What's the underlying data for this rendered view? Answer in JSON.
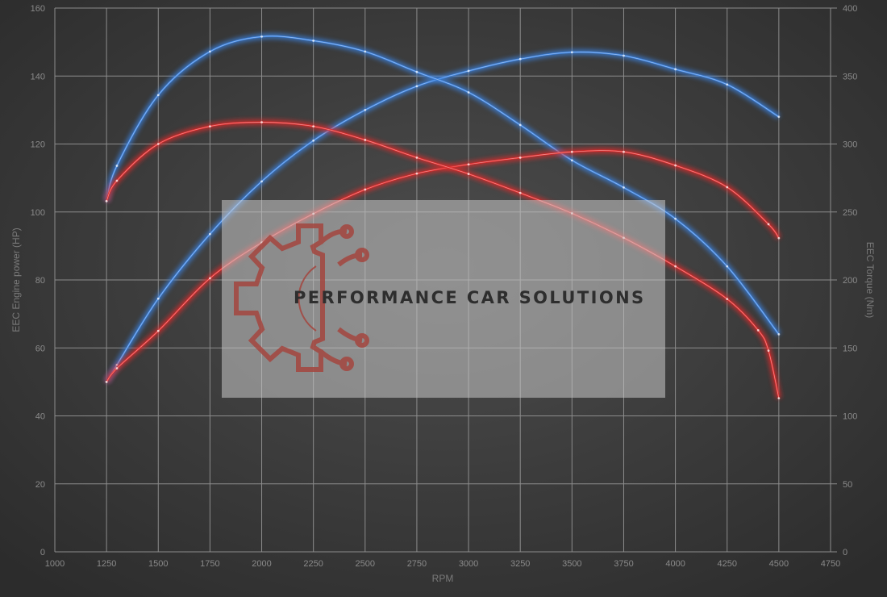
{
  "chart_data": {
    "type": "line",
    "title": "",
    "xlabel": "RPM",
    "ylabel": "EEC Engine power (HP)",
    "y2label": "EEC Torque (Nm)",
    "xlim": [
      1000,
      4750
    ],
    "ylim": [
      0,
      160
    ],
    "y2lim": [
      0,
      400
    ],
    "xticks": [
      1000,
      1250,
      1500,
      1750,
      2000,
      2250,
      2500,
      2750,
      3000,
      3250,
      3500,
      3750,
      4000,
      4250,
      4500,
      4750
    ],
    "yticks": [
      0,
      20,
      40,
      60,
      80,
      100,
      120,
      140,
      160
    ],
    "y2ticks": [
      0,
      50,
      100,
      150,
      200,
      250,
      300,
      350,
      400
    ],
    "grid": true,
    "watermark": "PERFORMANCE CAR SOLUTIONS",
    "series": [
      {
        "axis": "left",
        "color": "#3b82e0",
        "x": [
          1250,
          1300,
          1500,
          1750,
          2000,
          2250,
          2500,
          2750,
          3000,
          3250,
          3500,
          3750,
          4000,
          4250,
          4500
        ],
        "y": [
          50,
          55,
          74.5,
          93.5,
          109,
          121,
          130,
          137,
          141.5,
          145,
          147,
          146,
          142,
          137.5,
          128
        ]
      },
      {
        "axis": "right",
        "color": "#3b82e0",
        "x": [
          1250,
          1300,
          1500,
          1750,
          2000,
          2250,
          2500,
          2750,
          3000,
          3250,
          3500,
          3750,
          4000,
          4250,
          4500
        ],
        "y": [
          258,
          284,
          336,
          368,
          379,
          376,
          368,
          353,
          338,
          314,
          288,
          268,
          245,
          210,
          160
        ]
      },
      {
        "axis": "left",
        "color": "#e02a2a",
        "x": [
          1250,
          1300,
          1500,
          1750,
          2000,
          2250,
          2500,
          2750,
          3000,
          3250,
          3500,
          3750,
          4000,
          4250,
          4450,
          4500
        ],
        "y": [
          50,
          54,
          65,
          80.5,
          91,
          99.5,
          106.6,
          111.3,
          114,
          116,
          117.7,
          117.7,
          113.7,
          107.3,
          96.4,
          92.3
        ]
      },
      {
        "axis": "right",
        "color": "#e02a2a",
        "x": [
          1250,
          1300,
          1500,
          1750,
          2000,
          2250,
          2500,
          2750,
          3000,
          3250,
          3500,
          3750,
          4000,
          4250,
          4400,
          4450,
          4500
        ],
        "y": [
          258,
          273,
          300,
          313,
          316,
          313,
          303,
          290,
          278,
          264,
          249,
          231,
          210,
          186,
          163,
          148,
          113
        ]
      }
    ]
  }
}
